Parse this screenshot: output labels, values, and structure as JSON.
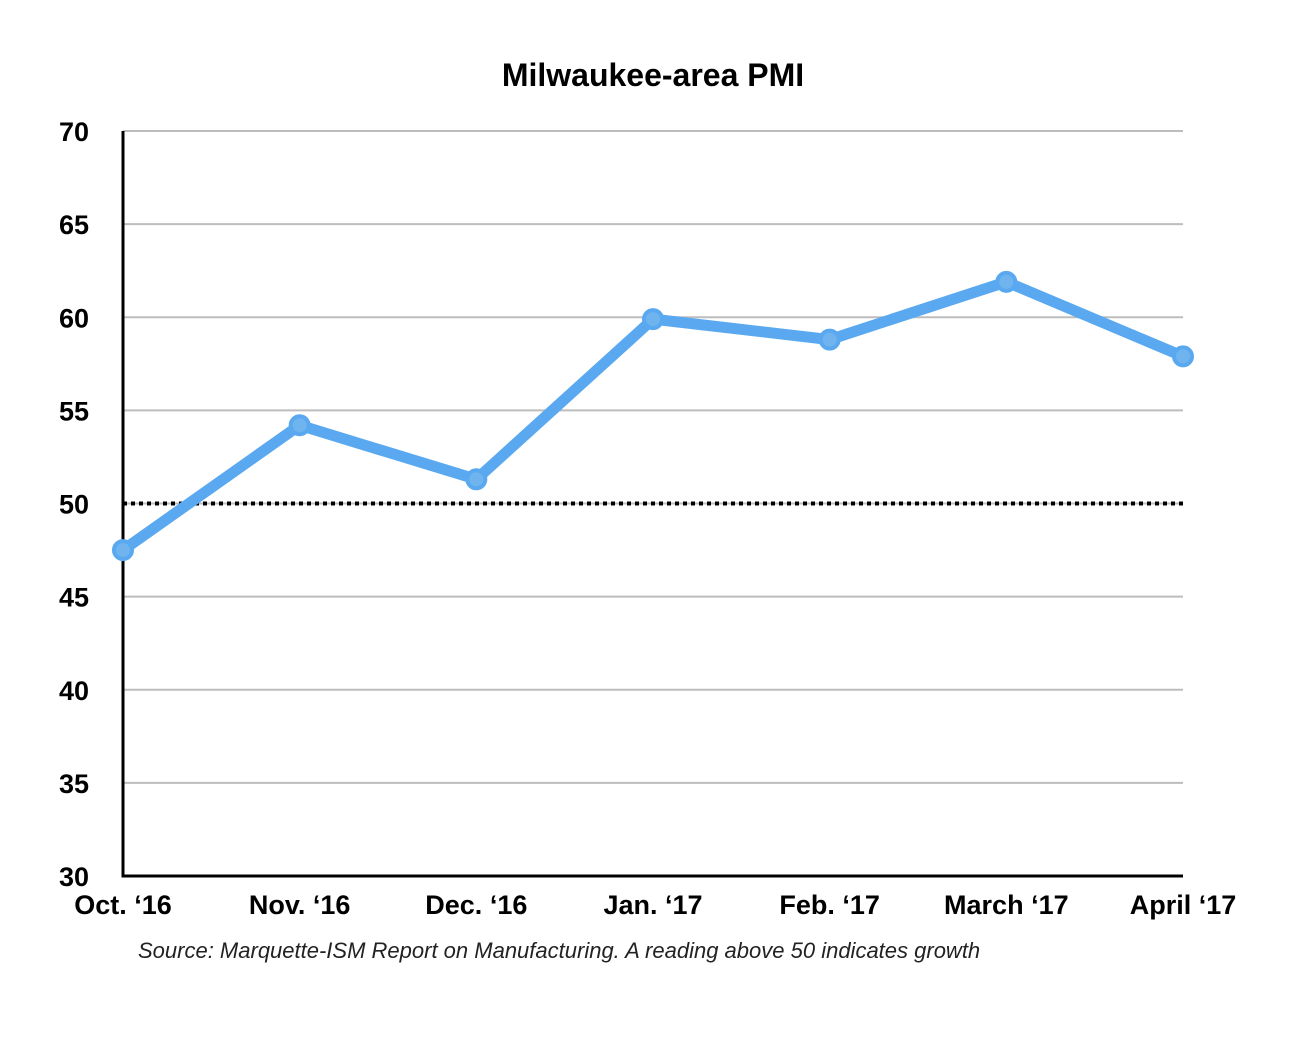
{
  "chart_data": {
    "type": "line",
    "title": "Milwaukee-area PMI",
    "categories": [
      "Oct. ‘16",
      "Nov. ‘16",
      "Dec. ‘16",
      "Jan. ‘17",
      "Feb. ‘17",
      "March ‘17",
      "April ‘17"
    ],
    "series": [
      {
        "values": [
          47.5,
          54.2,
          51.3,
          59.9,
          58.8,
          61.9,
          57.9
        ],
        "color": "#5aa9f0"
      }
    ],
    "yticks": [
      "30",
      "35",
      "40",
      "45",
      "50",
      "55",
      "60",
      "65",
      "70"
    ],
    "ylim": [
      30,
      70
    ],
    "reference_line": {
      "value": 50,
      "style": "dotted",
      "color": "#000000"
    },
    "grid": true,
    "gridline_color": "#bdbdbd",
    "xlabel": "",
    "ylabel": "",
    "source": "Source: Marquette-ISM Report on Manufacturing. A reading above 50 indicates growth"
  }
}
